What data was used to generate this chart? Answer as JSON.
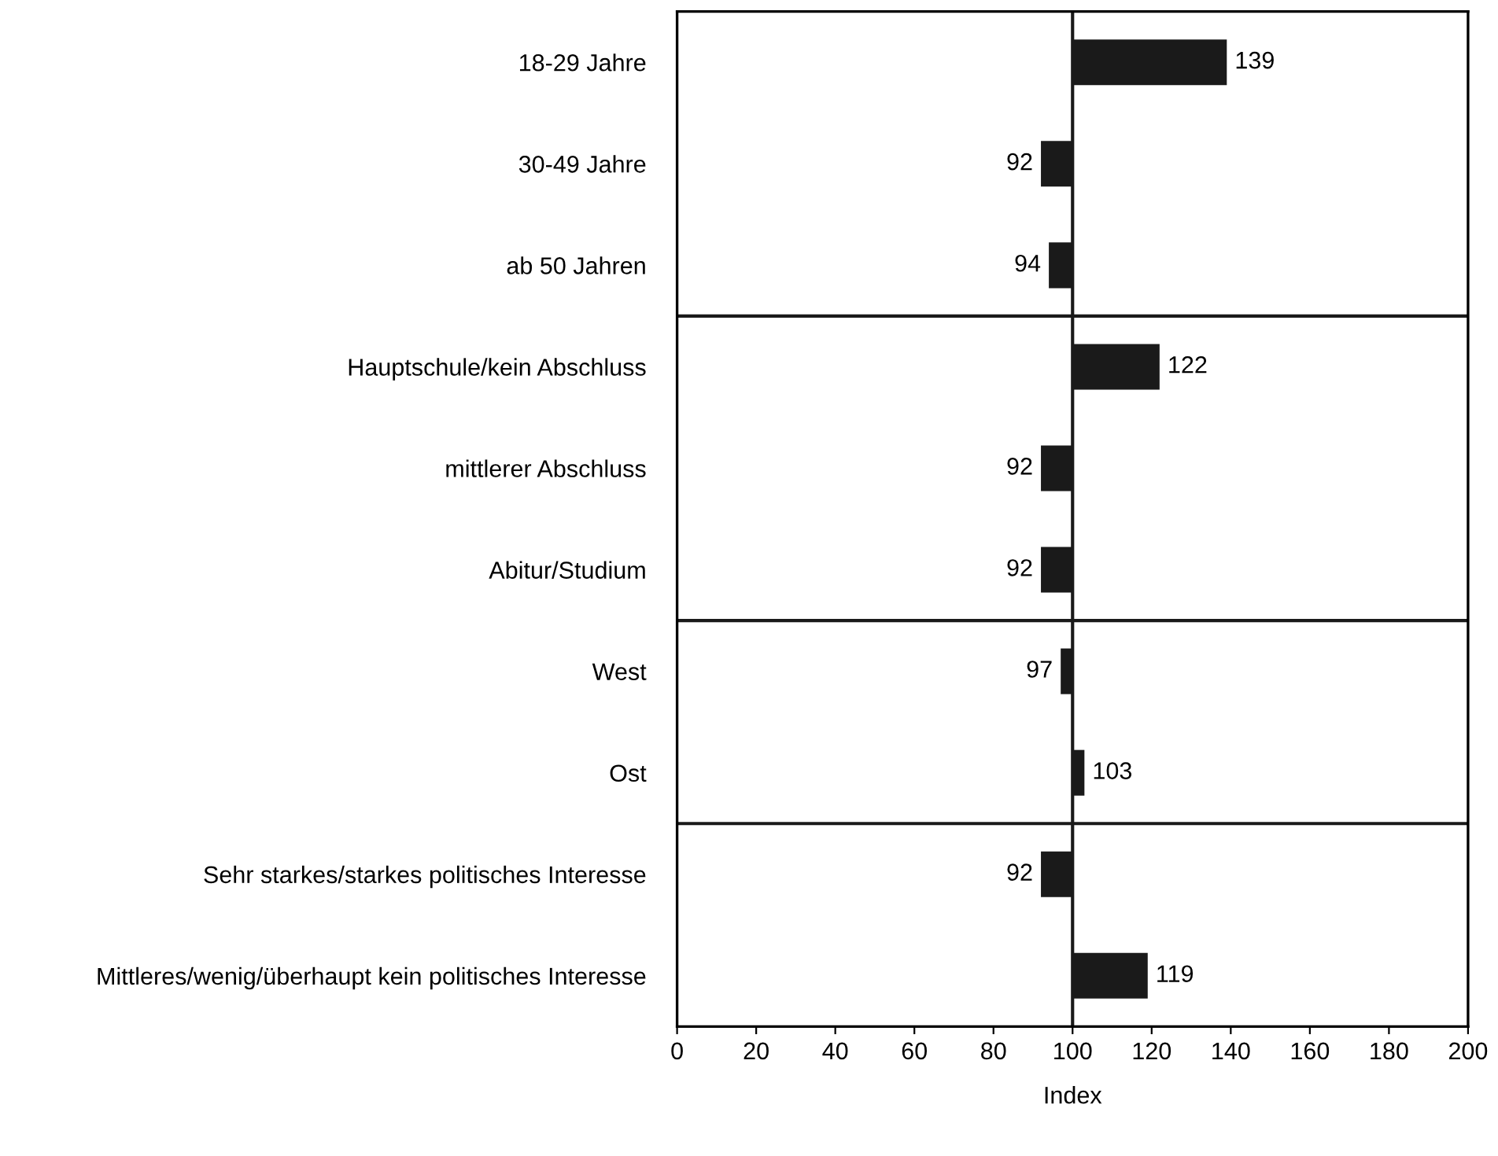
{
  "chart_data": {
    "type": "bar",
    "orientation": "horizontal",
    "xlabel": "Index",
    "categories": [
      "18-29 Jahre",
      "30-49 Jahre",
      "ab 50 Jahren",
      "Hauptschule/kein Abschluss",
      "mittlerer Abschluss",
      "Abitur/Studium",
      "West",
      "Ost",
      "Sehr starkes/starkes politisches Interesse",
      "Mittleres/wenig/überhaupt kein politisches Interesse"
    ],
    "base": [
      100,
      100,
      100,
      100,
      100,
      100,
      100,
      100,
      100,
      100
    ],
    "values": [
      39,
      -8,
      -6,
      22,
      -8,
      -8,
      -3,
      3,
      -8,
      19
    ],
    "value_labels": [
      "139",
      "92",
      "94",
      "122",
      "92",
      "92",
      "97",
      "103",
      "92",
      "119"
    ],
    "color": "#1a1a1a",
    "xlim": [
      0,
      200
    ],
    "xticks": [
      0,
      20,
      40,
      60,
      80,
      100,
      120,
      140,
      160,
      180,
      200
    ],
    "grid": false,
    "legend": false,
    "ref_lines": [
      {
        "axis": "x",
        "value": 100,
        "color": "#1a1a1a"
      }
    ]
  }
}
